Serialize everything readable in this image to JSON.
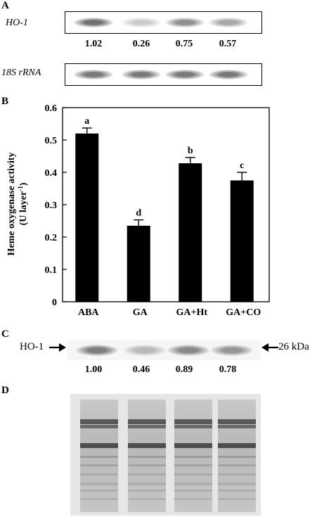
{
  "panels": {
    "a": {
      "letter": "A",
      "gene_label": "HO-1",
      "values": [
        "1.02",
        "0.26",
        "0.75",
        "0.57"
      ],
      "band_intensity": [
        1.02,
        0.26,
        0.75,
        0.57
      ],
      "control_label": "18S rRNA"
    },
    "b": {
      "letter": "B"
    },
    "c": {
      "letter": "C",
      "protein_label": "HO-1",
      "size_label": "26 kDa",
      "values": [
        "1.00",
        "0.46",
        "0.89",
        "0.78"
      ],
      "band_intensity": [
        1.0,
        0.46,
        0.89,
        0.78
      ]
    },
    "d": {
      "letter": "D"
    }
  },
  "chart_data": {
    "type": "bar",
    "categories": [
      "ABA",
      "GA",
      "GA+Ht",
      "GA+CO"
    ],
    "values": [
      0.52,
      0.235,
      0.428,
      0.375
    ],
    "errors": [
      0.017,
      0.018,
      0.018,
      0.025
    ],
    "letters": [
      "a",
      "d",
      "b",
      "c"
    ],
    "ylabel_line1": "Heme oxygenase activity",
    "ylabel_line2": "(U layer",
    "ylabel_sup": "-1",
    "ylabel_close": ")",
    "ylim": [
      0,
      0.6
    ],
    "yticks": [
      "0",
      "0.1",
      "0.2",
      "0.3",
      "0.4",
      "0.5",
      "0.6"
    ],
    "grid": false
  }
}
